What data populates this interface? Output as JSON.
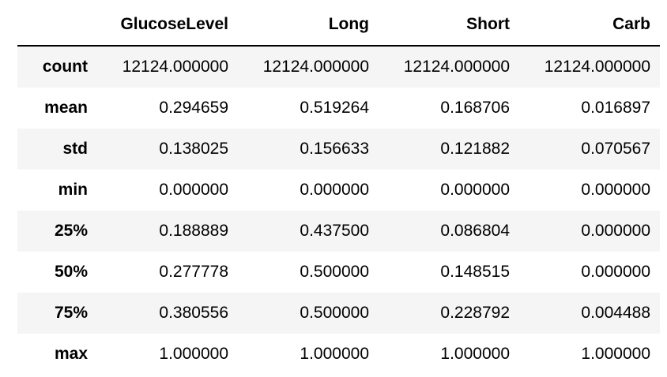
{
  "table": {
    "index_header": "",
    "columns": [
      "GlucoseLevel",
      "Long",
      "Short",
      "Carb"
    ],
    "rows": [
      {
        "label": "count",
        "values": [
          "12124.000000",
          "12124.000000",
          "12124.000000",
          "12124.000000"
        ]
      },
      {
        "label": "mean",
        "values": [
          "0.294659",
          "0.519264",
          "0.168706",
          "0.016897"
        ]
      },
      {
        "label": "std",
        "values": [
          "0.138025",
          "0.156633",
          "0.121882",
          "0.070567"
        ]
      },
      {
        "label": "min",
        "values": [
          "0.000000",
          "0.000000",
          "0.000000",
          "0.000000"
        ]
      },
      {
        "label": "25%",
        "values": [
          "0.188889",
          "0.437500",
          "0.086804",
          "0.000000"
        ]
      },
      {
        "label": "50%",
        "values": [
          "0.277778",
          "0.500000",
          "0.148515",
          "0.000000"
        ]
      },
      {
        "label": "75%",
        "values": [
          "0.380556",
          "0.500000",
          "0.228792",
          "0.004488"
        ]
      },
      {
        "label": "max",
        "values": [
          "1.000000",
          "1.000000",
          "1.000000",
          "1.000000"
        ]
      }
    ]
  }
}
